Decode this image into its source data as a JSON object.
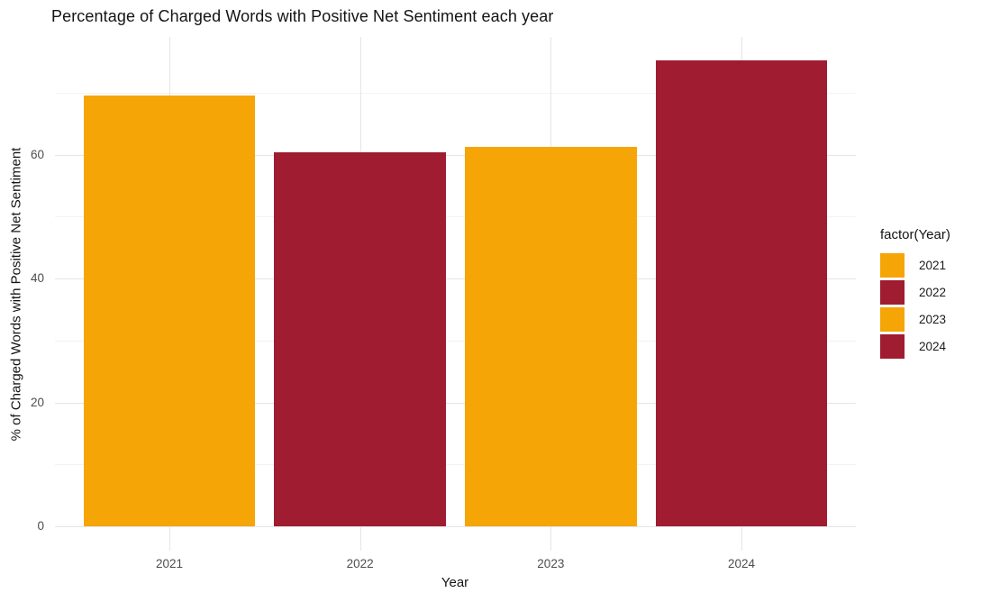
{
  "chart_data": {
    "type": "bar",
    "title": "Percentage of Charged Words with Positive Net Sentiment each year",
    "xlabel": "Year",
    "ylabel": "% of Charged Words with Positive Net Sentiment",
    "categories": [
      "2021",
      "2022",
      "2023",
      "2024"
    ],
    "values": [
      69.5,
      60.4,
      61.2,
      75.2
    ],
    "bar_colors": [
      "#F5A506",
      "#A01C30",
      "#F5A506",
      "#A01C30"
    ],
    "ylim": [
      -4,
      79
    ],
    "yticks_major": [
      0,
      20,
      40,
      60
    ],
    "yticks_minor": [
      10,
      30,
      50,
      70
    ],
    "grid": "major+minor, light grey on white",
    "legend": {
      "title": "factor(Year)",
      "position": "right",
      "entries": [
        {
          "label": "2021",
          "color": "#F5A506"
        },
        {
          "label": "2022",
          "color": "#A01C30"
        },
        {
          "label": "2023",
          "color": "#F5A506"
        },
        {
          "label": "2024",
          "color": "#A01C30"
        }
      ]
    }
  },
  "colors": {
    "orange": "#F5A506",
    "crimson": "#A01C30",
    "grid_major": "#e5e5e8",
    "grid_minor": "#f3f3f5",
    "tick_text": "#4d4d4d",
    "title_text": "#141414",
    "background": "#ffffff"
  }
}
